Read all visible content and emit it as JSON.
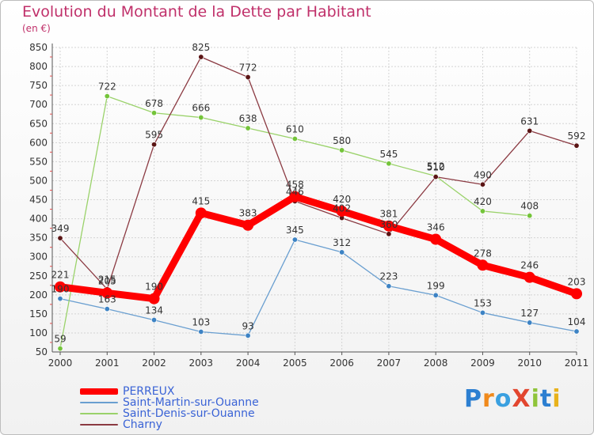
{
  "header": {
    "title": "Evolution du Montant de la Dette par Habitant",
    "unit": "(en €)"
  },
  "logo": {
    "text": "ProXiti"
  },
  "chart_data": {
    "type": "line",
    "title": "Evolution du Montant de la Dette par Habitant",
    "subtitle": "(en €)",
    "xlabel": "",
    "ylabel": "",
    "x": [
      "2000",
      "2001",
      "2002",
      "2003",
      "2004",
      "2005",
      "2006",
      "2007",
      "2008",
      "2009",
      "2010",
      "2011"
    ],
    "ylim": [
      50,
      850
    ],
    "yticks": [
      50,
      100,
      150,
      200,
      250,
      300,
      350,
      400,
      450,
      500,
      550,
      600,
      650,
      700,
      750,
      800,
      850
    ],
    "grid": true,
    "legend_position": "bottom-left",
    "series": [
      {
        "name": "PERREUX",
        "color": "#ff0000",
        "emphasis": true,
        "values": [
          221,
          205,
          190,
          415,
          383,
          458,
          420,
          381,
          346,
          278,
          246,
          203
        ]
      },
      {
        "name": "Saint-Martin-sur-Ouanne",
        "color": "#6a9fd0",
        "marker": "#3d83c4",
        "values": [
          190,
          163,
          134,
          103,
          93,
          345,
          312,
          223,
          199,
          153,
          127,
          104
        ]
      },
      {
        "name": "Saint-Denis-sur-Ouanne",
        "color": "#9ad26a",
        "marker": "#74c43a",
        "values": [
          59,
          722,
          678,
          666,
          638,
          610,
          580,
          545,
          512,
          420,
          408,
          null
        ]
      },
      {
        "name": "Charny",
        "color": "#8b3a42",
        "marker": "#5a1414",
        "values": [
          349,
          215,
          595,
          825,
          772,
          446,
          402,
          360,
          510,
          490,
          631,
          592
        ]
      }
    ]
  }
}
